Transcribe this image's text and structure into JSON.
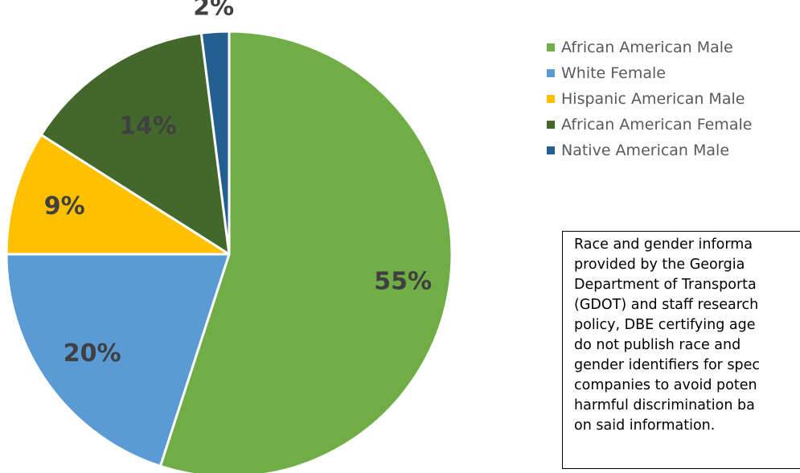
{
  "chart_data": {
    "type": "pie",
    "slices": [
      {
        "label": "African American Male",
        "value": 55,
        "display": "55%",
        "color": "#70AD47"
      },
      {
        "label": "White Female",
        "value": 20,
        "display": "20%",
        "color": "#5B9BD5"
      },
      {
        "label": "Hispanic American Male",
        "value": 9,
        "display": "9%",
        "color": "#FFC000"
      },
      {
        "label": "African American Female",
        "value": 14,
        "display": "14%",
        "color": "#43682B"
      },
      {
        "label": "Native American Male",
        "value": 2,
        "display": "2%",
        "color": "#255E91"
      }
    ],
    "legend_position": "right"
  },
  "note": {
    "text": "Race and gender informa\nprovided by the Georgia\nDepartment of Transporta\n(GDOT) and staff research\npolicy, DBE certifying age\ndo not publish race and\ngender identifiers for spec\ncompanies to avoid poten\nharmful discrimination ba\non said information."
  }
}
